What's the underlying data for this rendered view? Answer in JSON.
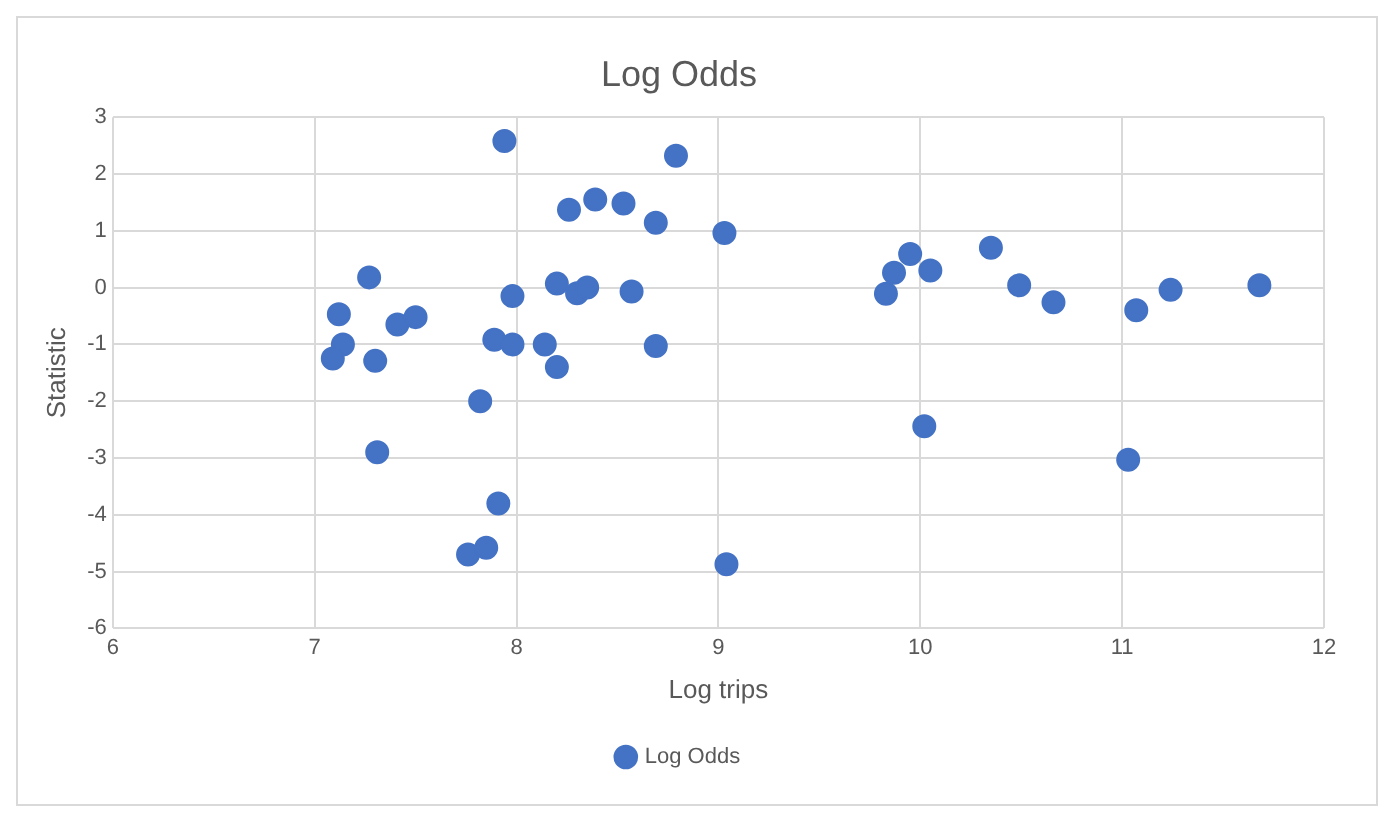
{
  "chart_data": {
    "type": "scatter",
    "title": "Log Odds",
    "xlabel": "Log trips",
    "ylabel": "Statistic",
    "xlim": [
      6,
      12
    ],
    "xticks": [
      6,
      7,
      8,
      9,
      10,
      11,
      12
    ],
    "ylim": [
      -6,
      3
    ],
    "yticks": [
      -6,
      -5,
      -4,
      -3,
      -2,
      -1,
      0,
      1,
      2,
      3
    ],
    "grid": true,
    "legend": "bottom",
    "marker": "circle",
    "series": [
      {
        "name": "Log Odds",
        "color": "#4472c4",
        "x": [
          7.12,
          7.14,
          7.09,
          7.27,
          7.3,
          7.31,
          7.41,
          7.5,
          7.94,
          7.82,
          7.91,
          7.76,
          7.85,
          7.89,
          7.98,
          7.98,
          8.14,
          8.2,
          8.2,
          8.26,
          8.3,
          8.35,
          8.39,
          8.53,
          8.57,
          8.69,
          8.69,
          8.79,
          9.03,
          9.04,
          9.83,
          9.87,
          9.95,
          10.05,
          10.02,
          10.35,
          10.49,
          10.66,
          11.03,
          11.07,
          11.24,
          11.68
        ],
        "values": [
          -0.47,
          -1.0,
          -1.25,
          0.18,
          -1.29,
          -2.9,
          -0.65,
          -0.52,
          2.58,
          -2.0,
          -3.8,
          -4.7,
          -4.58,
          -0.92,
          -0.15,
          -1.0,
          -1.0,
          -1.4,
          0.07,
          1.37,
          -0.1,
          0.0,
          1.55,
          1.48,
          -0.07,
          1.14,
          -1.03,
          2.32,
          0.96,
          -4.87,
          -0.11,
          0.26,
          0.59,
          0.3,
          -2.44,
          0.7,
          0.04,
          -0.26,
          -3.03,
          -0.4,
          -0.04,
          0.04
        ]
      }
    ]
  }
}
